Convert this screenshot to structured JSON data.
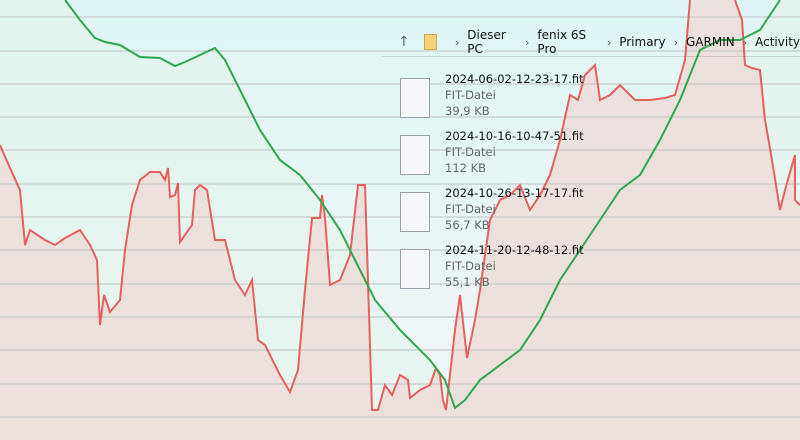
{
  "breadcrumb": {
    "items": [
      "Dieser PC",
      "fenix 6S Pro",
      "Primary",
      "GARMIN",
      "Activity"
    ]
  },
  "files": [
    {
      "name": "2024-06-02-12-23-17.fit",
      "type": "FIT-Datei",
      "size": "39,9 KB"
    },
    {
      "name": "2024-10-16-10-47-51.fit",
      "type": "FIT-Datei",
      "size": "112 KB"
    },
    {
      "name": "2024-10-26-13-17-17.fit",
      "type": "FIT-Datei",
      "size": "56,7 KB"
    },
    {
      "name": "2024-11-20-12-48-12.fit",
      "type": "FIT-Datei",
      "size": "55,1 KB"
    }
  ]
}
